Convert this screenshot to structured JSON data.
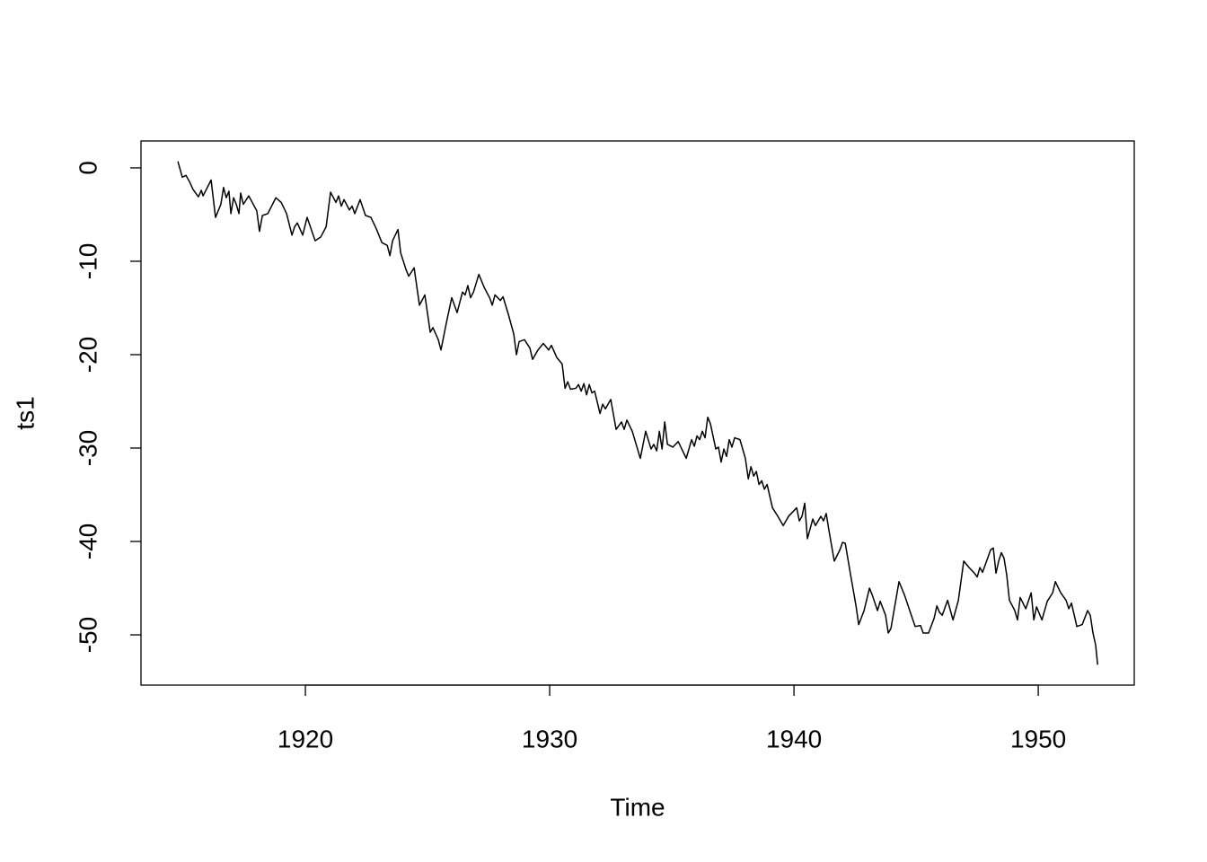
{
  "chart_data": {
    "type": "line",
    "x_label": "Time",
    "y_label": "ts1",
    "xlim": [
      1913.27,
      1953.93
    ],
    "ylim": [
      -55.38,
      2.88
    ],
    "xticks": [
      1920,
      1930,
      1940,
      1950
    ],
    "yticks": [
      0,
      -10,
      -20,
      -30,
      -40,
      -50
    ],
    "series": [
      {
        "color": "#000000",
        "x": [
          1914.78,
          1914.96,
          1915.11,
          1915.26,
          1915.4,
          1915.62,
          1915.74,
          1915.81,
          1916.14,
          1916.32,
          1916.54,
          1916.65,
          1916.76,
          1916.87,
          1916.95,
          1917.06,
          1917.17,
          1917.28,
          1917.35,
          1917.46,
          1917.68,
          1918.01,
          1918.12,
          1918.24,
          1918.46,
          1918.79,
          1919.01,
          1919.23,
          1919.45,
          1919.56,
          1919.67,
          1919.89,
          1920.07,
          1920.4,
          1920.63,
          1920.85,
          1921.03,
          1921.25,
          1921.36,
          1921.47,
          1921.58,
          1921.8,
          1921.91,
          1922.02,
          1922.24,
          1922.46,
          1922.68,
          1922.9,
          1923.13,
          1923.35,
          1923.46,
          1923.57,
          1923.79,
          1923.9,
          1924.12,
          1924.23,
          1924.45,
          1924.67,
          1924.89,
          1925.11,
          1925.22,
          1925.44,
          1925.55,
          1925.77,
          1925.99,
          1926.21,
          1926.43,
          1926.54,
          1926.65,
          1926.76,
          1926.88,
          1927.1,
          1927.32,
          1927.54,
          1927.65,
          1927.76,
          1927.98,
          1928.09,
          1928.31,
          1928.53,
          1928.64,
          1928.75,
          1928.97,
          1929.19,
          1929.3,
          1929.52,
          1929.74,
          1929.96,
          1930.07,
          1930.29,
          1930.51,
          1930.63,
          1930.74,
          1930.85,
          1931.07,
          1931.18,
          1931.29,
          1931.4,
          1931.51,
          1931.62,
          1931.73,
          1931.84,
          1932.06,
          1932.17,
          1932.28,
          1932.5,
          1932.72,
          1932.94,
          1933.05,
          1933.16,
          1933.38,
          1933.71,
          1933.93,
          1934.15,
          1934.26,
          1934.38,
          1934.49,
          1934.6,
          1934.71,
          1934.82,
          1935.04,
          1935.26,
          1935.59,
          1935.81,
          1935.92,
          1936.03,
          1936.14,
          1936.25,
          1936.36,
          1936.47,
          1936.58,
          1936.8,
          1936.91,
          1937.02,
          1937.13,
          1937.24,
          1937.35,
          1937.46,
          1937.57,
          1937.79,
          1938.01,
          1938.13,
          1938.24,
          1938.35,
          1938.46,
          1938.57,
          1938.68,
          1938.79,
          1938.9,
          1939.12,
          1939.34,
          1939.56,
          1939.78,
          1940.11,
          1940.22,
          1940.33,
          1940.44,
          1940.55,
          1940.77,
          1940.88,
          1941.1,
          1941.21,
          1941.32,
          1941.43,
          1941.65,
          1941.88,
          1941.99,
          1942.1,
          1942.32,
          1942.54,
          1942.65,
          1942.87,
          1943.09,
          1943.2,
          1943.42,
          1943.53,
          1943.75,
          1943.86,
          1943.97,
          1944.3,
          1944.52,
          1944.74,
          1944.96,
          1945.18,
          1945.29,
          1945.51,
          1945.74,
          1945.85,
          1945.96,
          1946.07,
          1946.29,
          1946.51,
          1946.73,
          1946.95,
          1947.17,
          1947.39,
          1947.5,
          1947.61,
          1947.72,
          1948.05,
          1948.16,
          1948.27,
          1948.38,
          1948.49,
          1948.6,
          1948.71,
          1948.82,
          1949.04,
          1949.15,
          1949.26,
          1949.49,
          1949.71,
          1949.82,
          1949.93,
          1950.15,
          1950.37,
          1950.59,
          1950.7,
          1950.92,
          1951.14,
          1951.25,
          1951.36,
          1951.58,
          1951.8,
          1952.02,
          1952.13,
          1952.24,
          1952.35,
          1952.43
        ],
        "values": [
          0.7,
          -1.0,
          -0.8,
          -1.5,
          -2.3,
          -3.1,
          -2.4,
          -3.0,
          -1.3,
          -5.3,
          -3.9,
          -2.1,
          -3.2,
          -2.5,
          -4.9,
          -3.2,
          -3.9,
          -4.9,
          -2.7,
          -3.9,
          -3.0,
          -4.6,
          -6.8,
          -5.1,
          -4.9,
          -3.2,
          -3.7,
          -4.9,
          -7.2,
          -6.3,
          -5.9,
          -7.2,
          -5.3,
          -7.8,
          -7.4,
          -6.3,
          -2.6,
          -3.7,
          -3.0,
          -4.1,
          -3.4,
          -4.5,
          -4.1,
          -4.9,
          -3.4,
          -5.1,
          -5.3,
          -6.5,
          -8.0,
          -8.3,
          -9.4,
          -7.8,
          -6.6,
          -9.1,
          -10.9,
          -11.6,
          -10.7,
          -14.7,
          -13.6,
          -17.6,
          -17.1,
          -18.4,
          -19.5,
          -16.6,
          -13.9,
          -15.5,
          -13.3,
          -13.6,
          -12.6,
          -13.9,
          -13.3,
          -11.4,
          -12.8,
          -13.9,
          -14.7,
          -13.6,
          -14.2,
          -13.8,
          -15.7,
          -17.8,
          -20.0,
          -18.6,
          -18.4,
          -19.3,
          -20.5,
          -19.5,
          -18.8,
          -19.5,
          -19.0,
          -20.3,
          -21.0,
          -23.6,
          -22.9,
          -23.7,
          -23.6,
          -23.2,
          -23.9,
          -23.1,
          -24.3,
          -23.2,
          -24.1,
          -23.9,
          -26.3,
          -25.3,
          -25.8,
          -24.8,
          -28.0,
          -27.2,
          -28.0,
          -27.0,
          -28.2,
          -31.1,
          -28.2,
          -30.1,
          -29.6,
          -30.3,
          -28.2,
          -30.1,
          -27.2,
          -29.6,
          -29.9,
          -29.3,
          -31.1,
          -29.1,
          -29.8,
          -28.7,
          -29.1,
          -28.2,
          -28.9,
          -26.7,
          -27.4,
          -30.1,
          -29.9,
          -31.5,
          -30.1,
          -30.9,
          -29.1,
          -29.9,
          -28.9,
          -29.1,
          -31.1,
          -33.3,
          -32.0,
          -33.0,
          -32.5,
          -33.9,
          -33.5,
          -34.4,
          -33.9,
          -36.4,
          -37.3,
          -38.3,
          -37.3,
          -36.4,
          -37.8,
          -37.3,
          -35.9,
          -39.7,
          -37.6,
          -38.3,
          -37.3,
          -37.8,
          -37.0,
          -38.8,
          -42.1,
          -40.9,
          -40.1,
          -40.2,
          -43.6,
          -46.9,
          -48.9,
          -47.4,
          -45.0,
          -45.7,
          -47.4,
          -46.4,
          -47.9,
          -49.8,
          -49.3,
          -44.3,
          -45.7,
          -47.4,
          -49.1,
          -49.0,
          -49.8,
          -49.8,
          -48.2,
          -46.9,
          -47.6,
          -47.9,
          -46.3,
          -48.4,
          -46.3,
          -42.1,
          -42.8,
          -43.4,
          -43.8,
          -42.8,
          -43.3,
          -40.9,
          -40.7,
          -43.4,
          -42.1,
          -41.2,
          -41.8,
          -43.6,
          -46.3,
          -47.4,
          -48.4,
          -46.0,
          -47.2,
          -45.5,
          -48.4,
          -47.0,
          -48.4,
          -46.4,
          -45.5,
          -44.3,
          -45.5,
          -46.3,
          -47.2,
          -46.6,
          -49.1,
          -48.9,
          -47.4,
          -47.9,
          -49.8,
          -51.1,
          -53.2
        ]
      }
    ]
  }
}
